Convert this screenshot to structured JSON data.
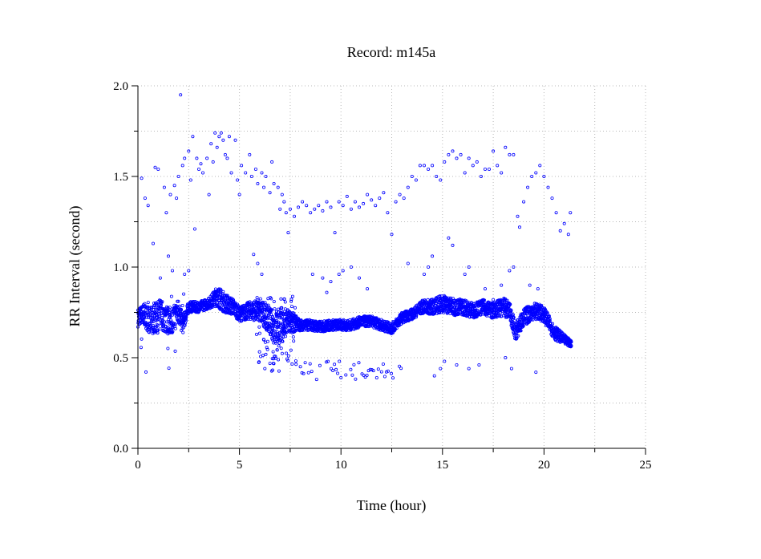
{
  "chart_data": {
    "type": "scatter",
    "title": "Record:  m145a",
    "xlabel": "Time (hour)",
    "ylabel": "RR Interval (second)",
    "xlim": [
      0,
      25
    ],
    "ylim": [
      0.0,
      2.0
    ],
    "x_ticks": [
      0,
      5,
      10,
      15,
      20,
      25
    ],
    "x_tick_labels": [
      "0",
      "5",
      "10",
      "15",
      "20",
      "25"
    ],
    "y_ticks": [
      0.0,
      0.5,
      1.0,
      1.5,
      2.0
    ],
    "y_tick_labels": [
      "0.0",
      "0.5",
      "1.0",
      "1.5",
      "2.0"
    ],
    "grid": true,
    "marker_color": "#0000ff",
    "series": [
      {
        "baseline": [
          [
            0.0,
            0.72
          ],
          [
            0.3,
            0.74
          ],
          [
            0.6,
            0.7
          ],
          [
            0.9,
            0.72
          ],
          [
            1.2,
            0.74
          ],
          [
            1.5,
            0.7
          ],
          [
            1.8,
            0.72
          ],
          [
            2.0,
            0.76
          ],
          [
            2.2,
            0.68
          ],
          [
            2.5,
            0.78
          ],
          [
            3.0,
            0.78
          ],
          [
            3.5,
            0.8
          ],
          [
            3.9,
            0.84
          ],
          [
            4.3,
            0.8
          ],
          [
            4.7,
            0.78
          ],
          [
            5.0,
            0.74
          ],
          [
            5.5,
            0.76
          ],
          [
            6.0,
            0.76
          ],
          [
            6.4,
            0.72
          ],
          [
            6.7,
            0.66
          ],
          [
            7.0,
            0.68
          ],
          [
            7.5,
            0.7
          ],
          [
            8.0,
            0.68
          ],
          [
            8.5,
            0.68
          ],
          [
            9.0,
            0.67
          ],
          [
            9.5,
            0.68
          ],
          [
            10.0,
            0.68
          ],
          [
            10.5,
            0.68
          ],
          [
            11.0,
            0.7
          ],
          [
            11.5,
            0.7
          ],
          [
            12.0,
            0.68
          ],
          [
            12.5,
            0.66
          ],
          [
            13.0,
            0.72
          ],
          [
            13.5,
            0.74
          ],
          [
            14.0,
            0.78
          ],
          [
            14.5,
            0.78
          ],
          [
            15.0,
            0.8
          ],
          [
            15.5,
            0.78
          ],
          [
            16.0,
            0.78
          ],
          [
            16.5,
            0.76
          ],
          [
            17.0,
            0.78
          ],
          [
            17.5,
            0.76
          ],
          [
            18.0,
            0.78
          ],
          [
            18.3,
            0.76
          ],
          [
            18.6,
            0.64
          ],
          [
            19.0,
            0.72
          ],
          [
            19.5,
            0.76
          ],
          [
            20.0,
            0.74
          ],
          [
            20.5,
            0.64
          ],
          [
            21.0,
            0.6
          ],
          [
            21.3,
            0.58
          ]
        ],
        "spread": [
          [
            0.0,
            0.05
          ],
          [
            0.5,
            0.07
          ],
          [
            1.0,
            0.09
          ],
          [
            2.0,
            0.07
          ],
          [
            2.5,
            0.03
          ],
          [
            3.5,
            0.03
          ],
          [
            4.0,
            0.06
          ],
          [
            5.0,
            0.04
          ],
          [
            6.0,
            0.06
          ],
          [
            7.0,
            0.1
          ],
          [
            8.0,
            0.03
          ],
          [
            12.0,
            0.03
          ],
          [
            13.5,
            0.03
          ],
          [
            15.0,
            0.05
          ],
          [
            17.0,
            0.04
          ],
          [
            18.0,
            0.05
          ],
          [
            19.0,
            0.05
          ],
          [
            20.5,
            0.04
          ],
          [
            21.3,
            0.02
          ]
        ],
        "points": [
          [
            0.18,
            1.49
          ],
          [
            0.35,
            1.38
          ],
          [
            0.5,
            1.34
          ],
          [
            0.75,
            1.13
          ],
          [
            0.85,
            1.55
          ],
          [
            1.0,
            1.54
          ],
          [
            1.3,
            1.44
          ],
          [
            1.4,
            1.3
          ],
          [
            1.6,
            1.4
          ],
          [
            1.8,
            1.45
          ],
          [
            1.9,
            1.38
          ],
          [
            2.0,
            1.5
          ],
          [
            2.1,
            1.95
          ],
          [
            2.2,
            1.56
          ],
          [
            2.3,
            1.6
          ],
          [
            2.5,
            1.64
          ],
          [
            2.6,
            1.48
          ],
          [
            2.7,
            1.72
          ],
          [
            2.8,
            1.21
          ],
          [
            2.9,
            1.6
          ],
          [
            3.0,
            1.54
          ],
          [
            3.1,
            1.57
          ],
          [
            3.2,
            1.52
          ],
          [
            3.4,
            1.6
          ],
          [
            3.5,
            1.4
          ],
          [
            3.6,
            1.68
          ],
          [
            3.7,
            1.58
          ],
          [
            3.8,
            1.74
          ],
          [
            3.9,
            1.66
          ],
          [
            4.0,
            1.72
          ],
          [
            4.1,
            1.74
          ],
          [
            4.2,
            1.7
          ],
          [
            4.3,
            1.62
          ],
          [
            4.4,
            1.6
          ],
          [
            4.5,
            1.72
          ],
          [
            4.6,
            1.52
          ],
          [
            4.8,
            1.7
          ],
          [
            4.9,
            1.48
          ],
          [
            5.0,
            1.4
          ],
          [
            5.1,
            1.56
          ],
          [
            5.3,
            1.52
          ],
          [
            5.5,
            1.62
          ],
          [
            5.6,
            1.5
          ],
          [
            5.8,
            1.54
          ],
          [
            5.9,
            1.46
          ],
          [
            6.1,
            1.52
          ],
          [
            6.2,
            1.44
          ],
          [
            6.3,
            1.5
          ],
          [
            6.5,
            1.41
          ],
          [
            6.6,
            1.58
          ],
          [
            6.7,
            1.46
          ],
          [
            6.9,
            1.44
          ],
          [
            7.0,
            1.32
          ],
          [
            7.1,
            1.4
          ],
          [
            7.2,
            1.36
          ],
          [
            7.3,
            1.3
          ],
          [
            7.4,
            1.19
          ],
          [
            7.5,
            1.32
          ],
          [
            7.7,
            1.28
          ],
          [
            7.9,
            1.33
          ],
          [
            8.1,
            1.36
          ],
          [
            8.3,
            1.34
          ],
          [
            8.5,
            1.3
          ],
          [
            8.7,
            1.32
          ],
          [
            8.9,
            1.34
          ],
          [
            9.1,
            1.31
          ],
          [
            9.3,
            1.36
          ],
          [
            9.5,
            1.33
          ],
          [
            9.7,
            1.19
          ],
          [
            9.9,
            1.36
          ],
          [
            10.1,
            1.34
          ],
          [
            10.3,
            1.39
          ],
          [
            10.5,
            1.32
          ],
          [
            10.7,
            1.36
          ],
          [
            10.9,
            1.33
          ],
          [
            11.1,
            1.35
          ],
          [
            11.3,
            1.4
          ],
          [
            11.5,
            1.37
          ],
          [
            11.7,
            1.34
          ],
          [
            11.9,
            1.38
          ],
          [
            12.1,
            1.41
          ],
          [
            12.3,
            1.3
          ],
          [
            12.5,
            1.18
          ],
          [
            12.7,
            1.36
          ],
          [
            12.9,
            1.4
          ],
          [
            13.1,
            1.38
          ],
          [
            13.3,
            1.44
          ],
          [
            13.5,
            1.5
          ],
          [
            13.7,
            1.48
          ],
          [
            13.9,
            1.56
          ],
          [
            14.1,
            1.56
          ],
          [
            14.3,
            1.54
          ],
          [
            14.5,
            1.56
          ],
          [
            14.7,
            1.5
          ],
          [
            14.9,
            1.48
          ],
          [
            15.1,
            1.58
          ],
          [
            15.3,
            1.62
          ],
          [
            15.5,
            1.64
          ],
          [
            15.7,
            1.6
          ],
          [
            15.9,
            1.62
          ],
          [
            16.1,
            1.52
          ],
          [
            16.3,
            1.6
          ],
          [
            16.5,
            1.56
          ],
          [
            16.7,
            1.58
          ],
          [
            16.9,
            1.5
          ],
          [
            17.1,
            1.54
          ],
          [
            17.3,
            1.54
          ],
          [
            17.5,
            1.64
          ],
          [
            17.7,
            1.56
          ],
          [
            17.9,
            1.52
          ],
          [
            18.1,
            1.66
          ],
          [
            18.3,
            1.62
          ],
          [
            18.5,
            1.62
          ],
          [
            18.7,
            1.28
          ],
          [
            18.8,
            1.22
          ],
          [
            19.0,
            1.36
          ],
          [
            19.2,
            1.44
          ],
          [
            19.4,
            1.5
          ],
          [
            19.6,
            1.52
          ],
          [
            19.8,
            1.56
          ],
          [
            20.0,
            1.5
          ],
          [
            20.2,
            1.44
          ],
          [
            20.4,
            1.38
          ],
          [
            20.6,
            1.3
          ],
          [
            20.8,
            1.2
          ],
          [
            21.0,
            1.24
          ],
          [
            21.2,
            1.18
          ],
          [
            21.3,
            1.3
          ],
          [
            14.6,
            0.4
          ],
          [
            14.9,
            0.44
          ],
          [
            15.1,
            0.48
          ],
          [
            15.7,
            0.46
          ],
          [
            16.3,
            0.44
          ],
          [
            16.8,
            0.46
          ],
          [
            18.1,
            0.5
          ],
          [
            19.6,
            0.42
          ],
          [
            18.4,
            0.44
          ],
          [
            8.6,
            0.96
          ],
          [
            9.1,
            0.94
          ],
          [
            9.3,
            0.86
          ],
          [
            9.5,
            0.92
          ],
          [
            9.9,
            0.96
          ],
          [
            10.1,
            0.98
          ],
          [
            10.5,
            1.0
          ],
          [
            10.9,
            0.94
          ],
          [
            11.3,
            0.88
          ],
          [
            13.3,
            1.02
          ],
          [
            14.1,
            0.96
          ],
          [
            14.3,
            1.0
          ],
          [
            14.5,
            1.06
          ],
          [
            15.3,
            1.16
          ],
          [
            15.5,
            1.12
          ],
          [
            16.1,
            0.96
          ],
          [
            16.3,
            1.0
          ],
          [
            17.1,
            0.88
          ],
          [
            17.5,
            0.82
          ],
          [
            17.9,
            0.9
          ],
          [
            18.3,
            0.98
          ],
          [
            18.5,
            1.0
          ],
          [
            19.3,
            0.9
          ],
          [
            19.7,
            0.88
          ],
          [
            5.7,
            1.07
          ],
          [
            5.9,
            1.02
          ],
          [
            6.1,
            0.96
          ],
          [
            1.5,
            1.06
          ],
          [
            1.7,
            0.98
          ],
          [
            1.1,
            0.94
          ],
          [
            2.3,
            0.96
          ],
          [
            2.5,
            0.98
          ]
        ]
      }
    ]
  }
}
